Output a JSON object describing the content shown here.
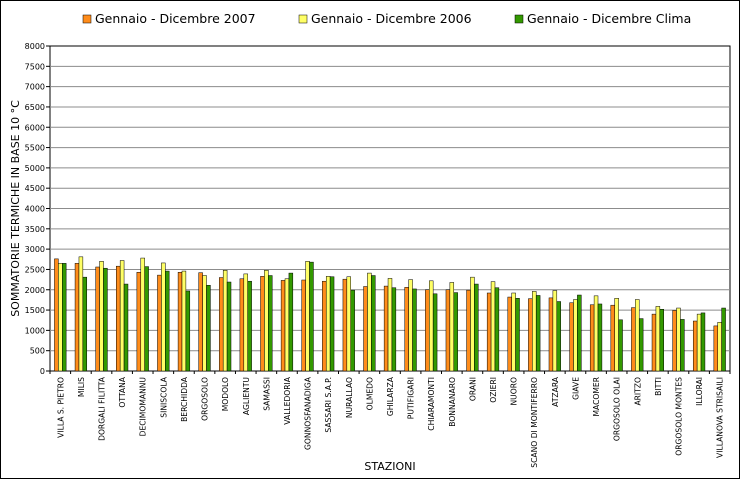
{
  "chart_data": {
    "type": "bar",
    "title": "",
    "xlabel": "STAZIONI",
    "ylabel": "SOMMATORIE TERMICHE IN BASE 10 °C",
    "ylim": [
      0,
      8000
    ],
    "yticks": [
      0,
      500,
      1000,
      1500,
      2000,
      2500,
      3000,
      3500,
      4000,
      4500,
      5000,
      5500,
      6000,
      6500,
      7000,
      7500,
      8000
    ],
    "grid": true,
    "legend_position": "top",
    "categories": [
      "VILLA S. PIETRO",
      "MILIS",
      "DORGALI FILITTA",
      "OTTANA",
      "DECIMOMANNU",
      "SINISCOLA",
      "BERCHIDDA",
      "ORGOSOLO",
      "MODOLO",
      "AGLIENTU",
      "SAMASSI",
      "VALLEDORIA",
      "GONNOSFANADIGA",
      "SASSARI S.A.P.",
      "NURALLAO",
      "OLMEDO",
      "GHILARZA",
      "PUTIFIGARI",
      "CHIARAMONTI",
      "BONNANARO",
      "ORANI",
      "OZIERI",
      "NUORO",
      "SCANO DI MONTIFERRO",
      "ATZARA",
      "GIAVE",
      "MACOMER",
      "ORGOSOLO OLAI",
      "ARITZO",
      "BITTI",
      "ORGOSOLO MONTES",
      "ILLORAI",
      "VILLANOVA STRISAILI"
    ],
    "series": [
      {
        "name": "Gennaio - Dicembre 2007",
        "color": "#FF8C1A",
        "values": [
          2760,
          2650,
          2560,
          2580,
          2430,
          2360,
          2430,
          2420,
          2300,
          2270,
          2330,
          2230,
          2240,
          2210,
          2260,
          2080,
          2090,
          2060,
          2000,
          2000,
          1990,
          1920,
          1820,
          1780,
          1800,
          1680,
          1630,
          1620,
          1560,
          1400,
          1490,
          1230,
          1110
        ]
      },
      {
        "name": "Gennaio - Dicembre 2006",
        "color": "#FFFF66",
        "values": [
          2650,
          2810,
          2700,
          2720,
          2780,
          2660,
          2460,
          2350,
          2480,
          2390,
          2480,
          2270,
          2700,
          2330,
          2320,
          2410,
          2280,
          2250,
          2220,
          2180,
          2310,
          2200,
          1920,
          1960,
          1980,
          1760,
          1850,
          1790,
          1760,
          1590,
          1550,
          1400,
          1200
        ]
      },
      {
        "name": "Gennaio - Dicembre Clima",
        "color": "#339900",
        "values": [
          2650,
          2310,
          2530,
          2140,
          2570,
          2460,
          1970,
          2110,
          2190,
          2210,
          2350,
          2410,
          2680,
          2320,
          1990,
          2350,
          2050,
          2020,
          1900,
          1930,
          2140,
          2050,
          1790,
          1860,
          1710,
          1870,
          1650,
          1260,
          1290,
          1520,
          1270,
          1430,
          1550
        ]
      }
    ]
  }
}
